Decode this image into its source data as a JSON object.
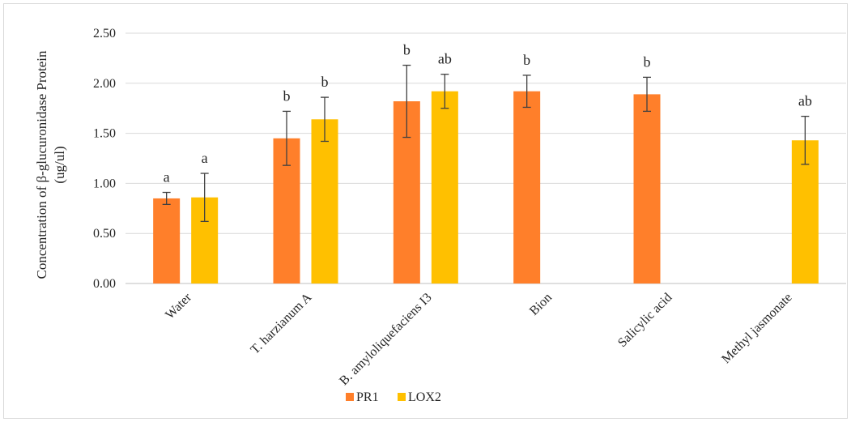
{
  "chart_data": {
    "type": "bar",
    "categories": [
      "Water",
      "T. harzianum A",
      "B. amyloliquefaciens I3",
      "Bion",
      "Salicylic acid",
      "Methyl jasmonate"
    ],
    "ylabel": "Concentration of β-glucuronidase Protein (ug/ul)",
    "ylabel_lines": [
      "Concentration of β-glucuronidase Protein",
      "(ug/ul)"
    ],
    "ylim": [
      0,
      2.5
    ],
    "yticks": [
      0,
      0.5,
      1.0,
      1.5,
      2.0,
      2.5
    ],
    "ytick_labels": [
      "0.00",
      "0.50",
      "1.00",
      "1.50",
      "2.00",
      "2.50"
    ],
    "grid": true,
    "legend_position": "bottom",
    "series": [
      {
        "name": "PR1",
        "color": "#ff7f2a",
        "values": [
          0.85,
          1.45,
          1.82,
          1.92,
          1.89,
          null
        ],
        "errors": [
          0.06,
          0.27,
          0.36,
          0.16,
          0.17,
          null
        ],
        "labels": [
          "a",
          "b",
          "b",
          "b",
          "b",
          null
        ]
      },
      {
        "name": "LOX2",
        "color": "#ffc000",
        "values": [
          0.86,
          1.64,
          1.92,
          null,
          null,
          1.43
        ],
        "errors": [
          0.24,
          0.22,
          0.17,
          null,
          null,
          0.24
        ],
        "labels": [
          "a",
          "b",
          "ab",
          null,
          null,
          "ab"
        ]
      }
    ]
  }
}
